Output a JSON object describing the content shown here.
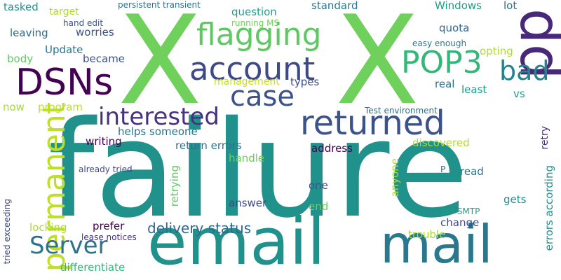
{
  "colors": {
    "background": "#ffffff",
    "palette": [
      "#440154",
      "#3b528b",
      "#2c728e",
      "#21918c",
      "#28ae80",
      "#5ec962",
      "#addc30",
      "#fde725"
    ]
  },
  "words": [
    {
      "text": "failure",
      "color": "#21918c"
    },
    {
      "text": "X",
      "color": "#6fd05b"
    },
    {
      "text": "X",
      "color": "#6fd05b"
    },
    {
      "text": "email",
      "color": "#21918c"
    },
    {
      "text": "mail",
      "color": "#2a788e"
    },
    {
      "text": "pp",
      "color": "#482878"
    },
    {
      "text": "returned",
      "color": "#3b528b"
    },
    {
      "text": "account",
      "color": "#3e4989"
    },
    {
      "text": "DSNs",
      "color": "#440154"
    },
    {
      "text": "flagging",
      "color": "#5ec962"
    },
    {
      "text": "case",
      "color": "#3b528b"
    },
    {
      "text": "POP3",
      "color": "#35b779"
    },
    {
      "text": "bad",
      "color": "#26828e"
    },
    {
      "text": "permanent",
      "color": "#bddf26"
    },
    {
      "text": "interested",
      "color": "#46327e"
    },
    {
      "text": "Server",
      "color": "#2c728e"
    },
    {
      "text": "delivery status",
      "color": "#31688e"
    },
    {
      "text": "tasked",
      "color": "#21918c"
    },
    {
      "text": "target",
      "color": "#addc30"
    },
    {
      "text": "persistent transient",
      "color": "#2c728e"
    },
    {
      "text": "question",
      "color": "#1f9e89"
    },
    {
      "text": "standard",
      "color": "#2a788e"
    },
    {
      "text": "Windows",
      "color": "#1f9e89"
    },
    {
      "text": "lot",
      "color": "#2c728e"
    },
    {
      "text": "hand edit",
      "color": "#3b528b"
    },
    {
      "text": "worries",
      "color": "#3b528b"
    },
    {
      "text": "running MS",
      "color": "#6ece58"
    },
    {
      "text": "leaving",
      "color": "#31688e"
    },
    {
      "text": "quota",
      "color": "#31688e"
    },
    {
      "text": "easy enough",
      "color": "#2a788e"
    },
    {
      "text": "Update",
      "color": "#2c728e"
    },
    {
      "text": "body",
      "color": "#5ec962"
    },
    {
      "text": "became",
      "color": "#3b528b"
    },
    {
      "text": "opting",
      "color": "#addc30"
    },
    {
      "text": "management",
      "color": "#c8e020"
    },
    {
      "text": "types",
      "color": "#3e4989"
    },
    {
      "text": "real",
      "color": "#2c728e"
    },
    {
      "text": "least",
      "color": "#1f9e89"
    },
    {
      "text": "vs",
      "color": "#1f9e89"
    },
    {
      "text": "now",
      "color": "#a5db36"
    },
    {
      "text": "program",
      "color": "#bddf26"
    },
    {
      "text": "Test environment",
      "color": "#2c728e"
    },
    {
      "text": "helps someone",
      "color": "#2c728e"
    },
    {
      "text": "writing",
      "color": "#440154"
    },
    {
      "text": "return errors",
      "color": "#2c728e"
    },
    {
      "text": "address",
      "color": "#440154"
    },
    {
      "text": "discovered",
      "color": "#addc30"
    },
    {
      "text": "retry",
      "color": "#46327e"
    },
    {
      "text": "handle",
      "color": "#6ece58"
    },
    {
      "text": "already tried",
      "color": "#3e4989"
    },
    {
      "text": "retrying",
      "color": "#5ec962"
    },
    {
      "text": "anyone",
      "color": "#addc30"
    },
    {
      "text": "P",
      "color": "#2c728e"
    },
    {
      "text": "read",
      "color": "#2c728e"
    },
    {
      "text": "errors according",
      "color": "#21918c"
    },
    {
      "text": "one",
      "color": "#3b528b"
    },
    {
      "text": "end",
      "color": "#6ece58"
    },
    {
      "text": "answer",
      "color": "#3e4989"
    },
    {
      "text": "gets",
      "color": "#21918c"
    },
    {
      "text": "tried exceeding",
      "color": "#3e4989"
    },
    {
      "text": "locking",
      "color": "#addc30"
    },
    {
      "text": "prefer",
      "color": "#440154"
    },
    {
      "text": "lease notices",
      "color": "#46327e"
    },
    {
      "text": "MS SMTP",
      "color": "#1f9e89"
    },
    {
      "text": "change",
      "color": "#3e4989"
    },
    {
      "text": "trouble",
      "color": "#a5db36"
    },
    {
      "text": "differentiate",
      "color": "#35b779"
    }
  ]
}
